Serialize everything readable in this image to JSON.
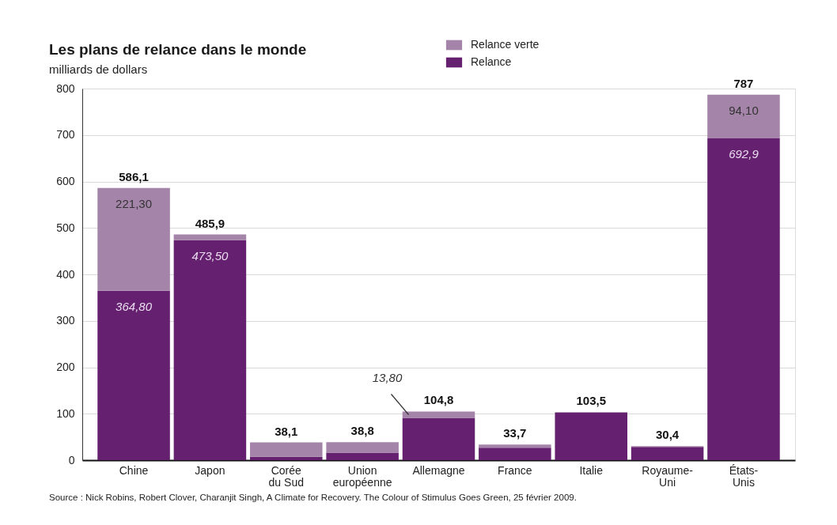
{
  "chart_data": {
    "type": "bar",
    "title": "Les plans de relance dans le monde",
    "subtitle": "milliards de dollars",
    "categories": [
      "Chine",
      "Japon",
      "Corée du Sud",
      "Union européenne",
      "Allemagne",
      "France",
      "Italie",
      "Royaume-Uni",
      "États-Unis"
    ],
    "series": [
      {
        "name": "Relance",
        "color": "#65216f",
        "values": [
          364.8,
          473.5,
          7.4,
          16.0,
          91.0,
          26.6,
          102.2,
          28.3,
          692.9
        ],
        "value_labels": [
          "364,80",
          "473,50",
          null,
          null,
          null,
          null,
          null,
          null,
          "692,9"
        ]
      },
      {
        "name": "Relance verte",
        "color": "#a584a9",
        "values": [
          221.3,
          12.4,
          30.7,
          22.8,
          13.8,
          7.1,
          1.3,
          2.1,
          94.1
        ],
        "value_labels": [
          "221,30",
          null,
          null,
          null,
          "13,80",
          null,
          null,
          null,
          "94,10"
        ]
      }
    ],
    "stacked": true,
    "totals": [
      "586,1",
      "485,9",
      "38,1",
      "38,8",
      "104,8",
      "33,7",
      "103,5",
      "30,4",
      "787"
    ],
    "ylim": [
      0,
      800
    ],
    "yticks": [
      0,
      100,
      200,
      300,
      400,
      500,
      600,
      700,
      800
    ],
    "grid": "y",
    "legend": "top",
    "annotations": [
      "Source : Nick Robins, Robert Clover, Charanjit Singh, A Climate for Recovery. The Colour of Stimulus Goes Green, 25 février 2009."
    ]
  }
}
